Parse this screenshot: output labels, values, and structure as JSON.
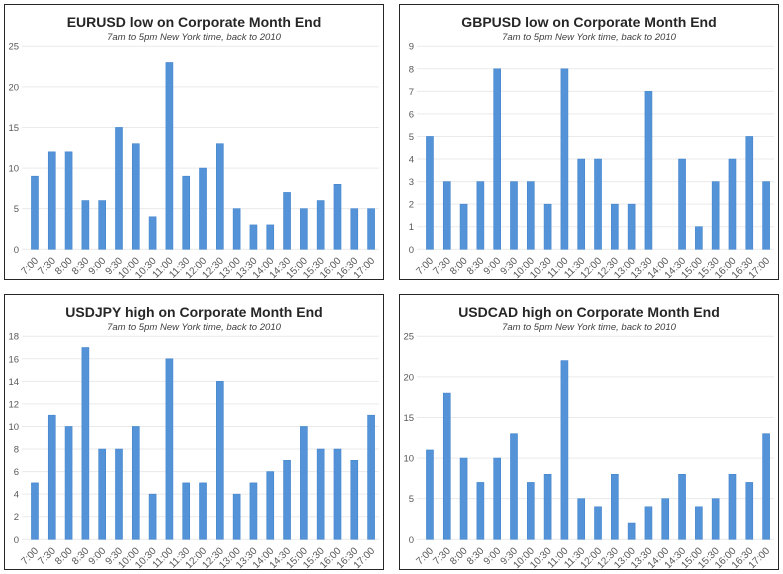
{
  "style": {
    "bar_color": "#5593D8",
    "bar_border_color": "#4385CC",
    "grid_color": "#EAEAEA",
    "axis_label_color": "#595959",
    "title_color": "#262626",
    "subtitle_color": "#404040",
    "panel_border_color": "#262626"
  },
  "chart_data": [
    {
      "type": "bar",
      "title": "EURUSD low on Corporate Month End",
      "subtitle": "7am to 5pm New York time, back to 2010",
      "categories": [
        "7:00",
        "7:30",
        "8:00",
        "8:30",
        "9:00",
        "9:30",
        "10:00",
        "10:30",
        "11:00",
        "11:30",
        "12:00",
        "12:30",
        "13:00",
        "13:30",
        "14:00",
        "14:30",
        "15:00",
        "15:30",
        "16:00",
        "16:30",
        "17:00"
      ],
      "values": [
        9,
        12,
        12,
        6,
        6,
        15,
        13,
        4,
        23,
        9,
        10,
        13,
        5,
        3,
        3,
        7,
        5,
        6,
        8,
        5,
        5
      ],
      "xlabel": "",
      "ylabel": "",
      "ylim": [
        0,
        25
      ],
      "ytick_step": 5,
      "grid": true,
      "legend": false
    },
    {
      "type": "bar",
      "title": "GBPUSD low on Corporate Month End",
      "subtitle": "7am to 5pm New York time, back to 2010",
      "categories": [
        "7:00",
        "7:30",
        "8:00",
        "8:30",
        "9:00",
        "9:30",
        "10:00",
        "10:30",
        "11:00",
        "11:30",
        "12:00",
        "12:30",
        "13:00",
        "13:30",
        "14:00",
        "14:30",
        "15:00",
        "15:30",
        "16:00",
        "16:30",
        "17:00"
      ],
      "values": [
        5,
        3,
        2,
        3,
        8,
        3,
        3,
        2,
        8,
        4,
        4,
        2,
        2,
        7,
        0,
        4,
        1,
        3,
        4,
        5,
        3
      ],
      "xlabel": "",
      "ylabel": "",
      "ylim": [
        0,
        9
      ],
      "ytick_step": 1,
      "grid": true,
      "legend": false
    },
    {
      "type": "bar",
      "title": "USDJPY high on Corporate Month End",
      "subtitle": "7am to 5pm New York time, back to 2010",
      "categories": [
        "7:00",
        "7:30",
        "8:00",
        "8:30",
        "9:00",
        "9:30",
        "10:00",
        "10:30",
        "11:00",
        "11:30",
        "12:00",
        "12:30",
        "13:00",
        "13:30",
        "14:00",
        "14:30",
        "15:00",
        "15:30",
        "16:00",
        "16:30",
        "17:00"
      ],
      "values": [
        5,
        11,
        10,
        17,
        8,
        8,
        10,
        4,
        16,
        5,
        5,
        14,
        4,
        5,
        6,
        7,
        10,
        8,
        8,
        7,
        11
      ],
      "xlabel": "",
      "ylabel": "",
      "ylim": [
        0,
        18
      ],
      "ytick_step": 2,
      "grid": true,
      "legend": false
    },
    {
      "type": "bar",
      "title": "USDCAD high on Corporate Month End",
      "subtitle": "7am to 5pm New York time, back to 2010",
      "categories": [
        "7:00",
        "7:30",
        "8:00",
        "8:30",
        "9:00",
        "9:30",
        "10:00",
        "10:30",
        "11:00",
        "11:30",
        "12:00",
        "12:30",
        "13:00",
        "13:30",
        "14:00",
        "14:30",
        "15:00",
        "15:30",
        "16:00",
        "16:30",
        "17:00"
      ],
      "values": [
        11,
        18,
        10,
        7,
        10,
        13,
        7,
        8,
        22,
        5,
        4,
        8,
        2,
        4,
        5,
        8,
        4,
        5,
        8,
        7,
        13
      ],
      "xlabel": "",
      "ylabel": "",
      "ylim": [
        0,
        25
      ],
      "ytick_step": 5,
      "grid": true,
      "legend": false
    }
  ]
}
